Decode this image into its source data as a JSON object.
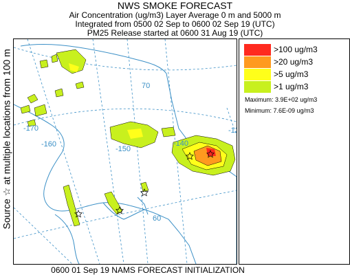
{
  "header": {
    "title": "NWS SMOKE FORECAST",
    "line2": "Air Concentration (ug/m3) Layer Average    0 m and  5000 m",
    "line3": "Integrated from 0500 02 Sep to 0600 02 Sep 19 (UTC)",
    "line4": "PM25 Release started at 0600 31 Aug 19 (UTC)"
  },
  "side_label": "Source ☆ at multiple locations  from  100 m",
  "footer": "0600 01 Sep 19 NAMS FORECAST INITIALIZATION",
  "legend": {
    "items": [
      {
        "label": ">100 ug/m3",
        "color": "#ff2a1f"
      },
      {
        "label": ">20 ug/m3",
        "color": "#ff9a1f"
      },
      {
        "label": ">5 ug/m3",
        "color": "#ffff1a"
      },
      {
        "label": ">1 ug/m3",
        "color": "#c8f01e"
      }
    ],
    "maximum": "Maximum: 3.9E+02 ug/m3",
    "minimum": "Minimum: 7.6E-09 ug/m3"
  },
  "map": {
    "lon_labels": [
      "-170",
      "-160",
      "-150",
      "-140",
      "-130"
    ],
    "lat_labels": [
      "70",
      "60"
    ],
    "graticule_color": "#3a8fc6"
  }
}
